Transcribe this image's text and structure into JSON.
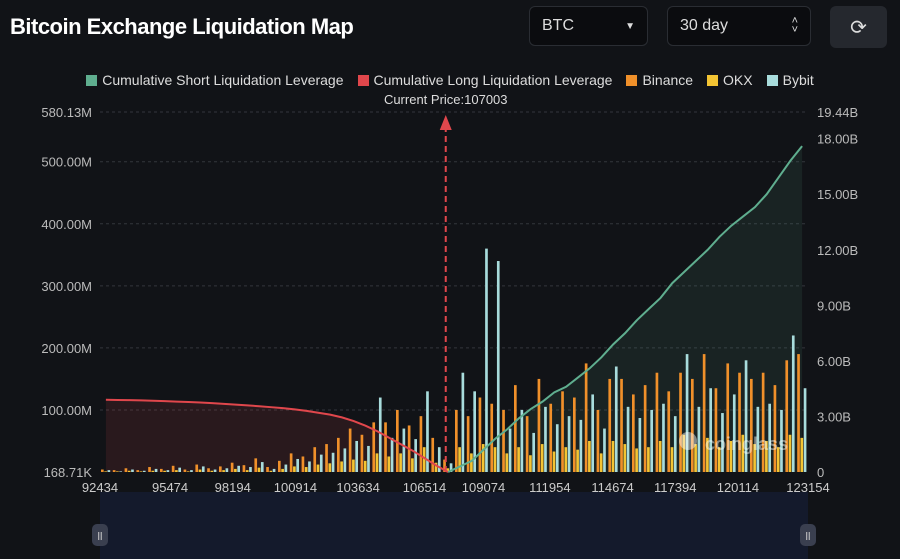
{
  "header": {
    "title": "Bitcoin Exchange Liquidation Map",
    "coin": "BTC",
    "period": "30 day",
    "refresh_icon": "refresh-icon"
  },
  "colors": {
    "short": "#5fae8f",
    "long": "#e0474c",
    "binance": "#f0902a",
    "okx": "#f3c433",
    "bybit": "#a8dcdc"
  },
  "chart_data": {
    "type": "bar",
    "legend": [
      "Cumulative Short Liquidation Leverage",
      "Cumulative Long Liquidation Leverage",
      "Binance",
      "OKX",
      "Bybit"
    ],
    "legend_placement": "top",
    "annotation": "Current Price:107003",
    "current_price": 107003,
    "x_ticks": [
      "92434",
      "95474",
      "98194",
      "100914",
      "103634",
      "106514",
      "109074",
      "111954",
      "114674",
      "117394",
      "120114",
      "123154"
    ],
    "xlim": [
      92434,
      123154
    ],
    "y_left_ticks": [
      "580.13M",
      "500.00M",
      "400.00M",
      "300.00M",
      "200.00M",
      "100.00M",
      "168.71K"
    ],
    "y_left_range_millions": [
      0.16871,
      580.13
    ],
    "y_right_ticks": [
      "19.44B",
      "18.00B",
      "15.00B",
      "12.00B",
      "9.00B",
      "6.00B",
      "3.00B",
      "0"
    ],
    "y_right_range_billions": [
      0,
      19.44
    ],
    "watermark": "coinglass",
    "bins_count": 60,
    "series": [
      {
        "name": "Binance",
        "unit": "M",
        "values": [
          4,
          3,
          6,
          3,
          8,
          5,
          10,
          4,
          12,
          6,
          9,
          15,
          11,
          22,
          8,
          18,
          30,
          25,
          40,
          45,
          55,
          70,
          60,
          80,
          80,
          100,
          75,
          90,
          55,
          20,
          100,
          90,
          120,
          110,
          100,
          140,
          90,
          150,
          110,
          130,
          120,
          175,
          100,
          150,
          150,
          125,
          140,
          160,
          130,
          160,
          150,
          190,
          135,
          175,
          160,
          150,
          160,
          140,
          180,
          190
        ]
      },
      {
        "name": "OKX",
        "unit": "M",
        "values": [
          1,
          1,
          2,
          1,
          2,
          2,
          3,
          1,
          4,
          2,
          3,
          5,
          3,
          7,
          2,
          5,
          9,
          8,
          12,
          14,
          17,
          20,
          18,
          30,
          25,
          30,
          22,
          40,
          15,
          6,
          40,
          30,
          45,
          40,
          30,
          40,
          27,
          45,
          33,
          40,
          36,
          50,
          30,
          50,
          45,
          38,
          40,
          50,
          40,
          60,
          45,
          55,
          40,
          50,
          60,
          45,
          50,
          40,
          60,
          55
        ]
      },
      {
        "name": "Bybit",
        "unit": "M",
        "values": [
          3,
          1,
          4,
          2,
          5,
          3,
          7,
          3,
          9,
          4,
          6,
          10,
          8,
          16,
          5,
          12,
          21,
          17,
          28,
          31,
          38,
          50,
          42,
          120,
          55,
          70,
          53,
          130,
          40,
          14,
          160,
          130,
          360,
          340,
          70,
          100,
          63,
          105,
          77,
          90,
          84,
          125,
          70,
          170,
          105,
          87,
          100,
          110,
          90,
          190,
          105,
          135,
          95,
          125,
          180,
          105,
          110,
          100,
          220,
          135
        ]
      },
      {
        "name": "Cumulative Long Liquidation Leverage",
        "unit": "B",
        "start_bin": 0,
        "values": [
          3.9,
          3.89,
          3.88,
          3.87,
          3.85,
          3.83,
          3.8,
          3.78,
          3.75,
          3.72,
          3.68,
          3.64,
          3.6,
          3.55,
          3.5,
          3.45,
          3.38,
          3.3,
          3.2,
          3.1,
          2.95,
          2.75,
          2.5,
          2.2,
          1.85,
          1.5,
          1.15,
          0.75,
          0.35,
          0
        ]
      },
      {
        "name": "Cumulative Short Liquidation Leverage",
        "unit": "B",
        "start_bin": 29,
        "values": [
          0,
          0.3,
          0.6,
          1.2,
          1.8,
          2.3,
          2.9,
          3.4,
          3.8,
          4.3,
          4.6,
          5.1,
          5.6,
          6.2,
          6.9,
          7.5,
          8.2,
          8.8,
          9.4,
          10.2,
          10.8,
          11.4,
          12.0,
          12.7,
          13.3,
          13.8,
          14.3,
          15.0,
          15.9,
          16.8,
          17.6
        ]
      }
    ]
  }
}
